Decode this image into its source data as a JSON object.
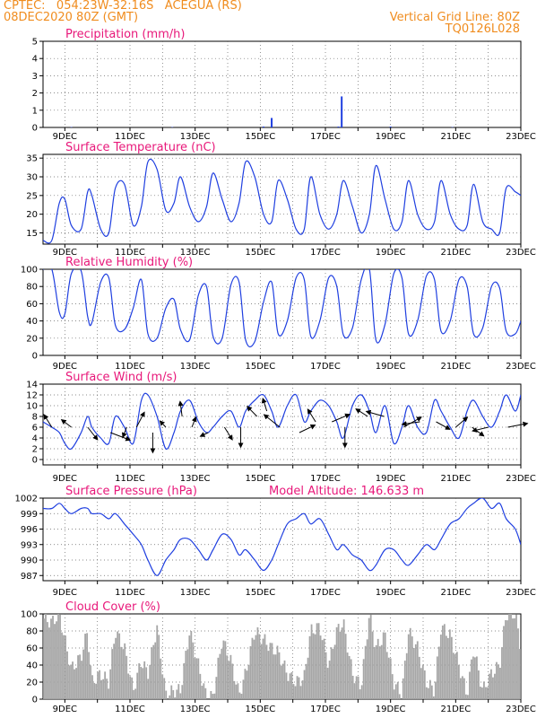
{
  "header": {
    "line1": "CPTEC:   054:23W-32:16S   ACEGUA (RS)",
    "line2": "08DEC2020 80Z (GMT)",
    "grid_note": "Vertical Grid Line: 80Z",
    "run_code": "TQ0126L028"
  },
  "colors": {
    "header": "#f08c1e",
    "title": "#e8187a",
    "series": "#1f3fe0",
    "cloud": "#a6a6a6",
    "wind_arrow": "#000000"
  },
  "chart_data": [
    {
      "type": "bar",
      "title": "Precipitation (mm/h)",
      "xlim": [
        8.33,
        23.0
      ],
      "ylim": [
        0,
        5
      ],
      "yticks": [
        0,
        1,
        2,
        3,
        4,
        5
      ],
      "xtick_labels": [
        "9DEC",
        "11DEC",
        "13DEC",
        "15DEC",
        "17DEC",
        "19DEC",
        "21DEC",
        "23DEC"
      ],
      "grid": true,
      "x": [
        9.2,
        12.3,
        15.1,
        15.35,
        17.4,
        17.5,
        19.0,
        20.9
      ],
      "values": [
        0.02,
        0.02,
        0.05,
        0.55,
        0.05,
        1.8,
        0.05,
        0.02
      ]
    },
    {
      "type": "line",
      "title": "Surface Temperature (nC)",
      "xlim": [
        8.33,
        23.0
      ],
      "ylim": [
        12,
        36
      ],
      "yticks": [
        15,
        20,
        25,
        30,
        35
      ],
      "xtick_labels": [
        "9DEC",
        "11DEC",
        "13DEC",
        "15DEC",
        "17DEC",
        "19DEC",
        "21DEC",
        "23DEC"
      ],
      "grid": true,
      "x": [
        8.33,
        8.6,
        8.83,
        9.0,
        9.2,
        9.5,
        9.7,
        9.83,
        10.1,
        10.35,
        10.55,
        10.83,
        11.1,
        11.35,
        11.55,
        11.83,
        12.1,
        12.35,
        12.55,
        12.83,
        13.1,
        13.35,
        13.55,
        13.83,
        14.1,
        14.35,
        14.55,
        14.83,
        15.1,
        15.35,
        15.55,
        15.83,
        16.1,
        16.35,
        16.55,
        16.83,
        17.1,
        17.35,
        17.55,
        17.83,
        18.1,
        18.35,
        18.55,
        18.83,
        19.1,
        19.35,
        19.55,
        19.83,
        20.1,
        20.35,
        20.55,
        20.83,
        21.1,
        21.35,
        21.55,
        21.83,
        22.1,
        22.35,
        22.55,
        22.83,
        23.0
      ],
      "values": [
        13,
        13,
        23,
        24,
        17,
        16,
        26,
        25,
        16,
        15,
        27,
        28,
        17,
        22,
        34,
        32,
        21,
        23,
        30,
        22,
        18,
        22,
        31,
        24,
        18,
        23,
        34,
        30,
        20,
        18,
        29,
        24,
        16,
        16,
        30,
        20,
        16,
        20,
        29,
        22,
        15,
        20,
        33,
        24,
        16,
        18,
        29,
        20,
        16,
        18,
        29,
        20,
        16,
        17,
        28,
        18,
        16,
        15,
        27,
        26,
        25
      ]
    },
    {
      "type": "line",
      "title": "Relative Humidity (%)",
      "xlim": [
        8.33,
        23.0
      ],
      "ylim": [
        0,
        100
      ],
      "yticks": [
        0,
        20,
        40,
        60,
        80,
        100
      ],
      "xtick_labels": [
        "9DEC",
        "11DEC",
        "13DEC",
        "15DEC",
        "17DEC",
        "19DEC",
        "21DEC",
        "23DEC"
      ],
      "grid": true,
      "x": [
        8.33,
        8.6,
        8.83,
        9.0,
        9.2,
        9.5,
        9.7,
        9.83,
        10.1,
        10.35,
        10.55,
        10.83,
        11.1,
        11.35,
        11.55,
        11.83,
        12.1,
        12.35,
        12.55,
        12.83,
        13.1,
        13.35,
        13.55,
        13.83,
        14.1,
        14.35,
        14.55,
        14.83,
        15.1,
        15.35,
        15.55,
        15.83,
        16.1,
        16.35,
        16.55,
        16.83,
        17.1,
        17.35,
        17.55,
        17.83,
        18.1,
        18.35,
        18.55,
        18.83,
        19.1,
        19.35,
        19.55,
        19.83,
        20.1,
        20.35,
        20.55,
        20.83,
        21.1,
        21.35,
        21.55,
        21.83,
        22.1,
        22.35,
        22.55,
        22.83,
        23.0
      ],
      "values": [
        100,
        100,
        50,
        48,
        95,
        98,
        45,
        38,
        85,
        90,
        35,
        30,
        55,
        88,
        25,
        20,
        55,
        65,
        30,
        18,
        70,
        80,
        22,
        20,
        82,
        85,
        18,
        16,
        62,
        85,
        25,
        40,
        90,
        88,
        22,
        40,
        90,
        80,
        24,
        32,
        88,
        100,
        18,
        36,
        95,
        90,
        25,
        40,
        92,
        88,
        28,
        40,
        88,
        80,
        25,
        32,
        80,
        78,
        28,
        25,
        40
      ]
    },
    {
      "type": "line",
      "title": "Surface Wind (m/s)",
      "xlim": [
        8.33,
        23.0
      ],
      "ylim": [
        -1,
        14
      ],
      "yticks": [
        0,
        2,
        4,
        6,
        8,
        10,
        12,
        14
      ],
      "xtick_labels": [
        "9DEC",
        "11DEC",
        "13DEC",
        "15DEC",
        "17DEC",
        "19DEC",
        "21DEC",
        "23DEC"
      ],
      "grid": true,
      "x": [
        8.33,
        8.6,
        8.83,
        9.0,
        9.2,
        9.5,
        9.7,
        9.83,
        10.1,
        10.35,
        10.55,
        10.83,
        11.1,
        11.35,
        11.55,
        11.83,
        12.1,
        12.35,
        12.55,
        12.83,
        13.1,
        13.35,
        13.55,
        13.83,
        14.1,
        14.35,
        14.55,
        14.83,
        15.1,
        15.35,
        15.55,
        15.83,
        16.1,
        16.35,
        16.55,
        16.83,
        17.1,
        17.35,
        17.55,
        17.83,
        18.1,
        18.35,
        18.55,
        18.83,
        19.1,
        19.35,
        19.55,
        19.83,
        20.1,
        20.35,
        20.55,
        20.83,
        21.1,
        21.35,
        21.55,
        21.83,
        22.1,
        22.35,
        22.55,
        22.83,
        23.0
      ],
      "values": [
        7,
        6,
        5,
        3,
        2,
        5,
        8,
        6,
        4,
        3,
        8,
        6,
        3,
        11,
        12,
        8,
        2,
        5,
        9,
        11,
        7,
        5,
        6,
        8,
        9,
        6,
        9,
        11,
        12,
        9,
        6,
        10,
        12,
        7,
        9,
        11,
        10,
        7,
        4,
        10,
        12,
        9,
        5,
        10,
        3,
        6,
        10,
        6,
        5,
        11,
        9,
        6,
        4,
        9,
        11,
        8,
        6,
        9,
        12,
        9,
        12
      ]
    },
    {
      "type": "line",
      "title": "Surface Pressure (hPa)",
      "subtitle": "Model Altitude: 146.633 m",
      "xlim": [
        8.33,
        23.0
      ],
      "ylim": [
        986,
        1002
      ],
      "yticks": [
        987,
        990,
        993,
        996,
        999,
        1002
      ],
      "xtick_labels": [
        "9DEC",
        "11DEC",
        "13DEC",
        "15DEC",
        "17DEC",
        "19DEC",
        "21DEC",
        "23DEC"
      ],
      "grid": true,
      "x": [
        8.33,
        8.6,
        8.83,
        9.0,
        9.2,
        9.5,
        9.7,
        9.83,
        10.1,
        10.35,
        10.55,
        10.83,
        11.1,
        11.35,
        11.55,
        11.83,
        12.1,
        12.35,
        12.55,
        12.83,
        13.1,
        13.35,
        13.55,
        13.83,
        14.1,
        14.35,
        14.55,
        14.83,
        15.1,
        15.35,
        15.55,
        15.83,
        16.1,
        16.35,
        16.55,
        16.83,
        17.1,
        17.35,
        17.55,
        17.83,
        18.1,
        18.35,
        18.55,
        18.83,
        19.1,
        19.35,
        19.55,
        19.83,
        20.1,
        20.35,
        20.55,
        20.83,
        21.1,
        21.35,
        21.55,
        21.83,
        22.1,
        22.35,
        22.55,
        22.83,
        23.0
      ],
      "values": [
        1000,
        1000,
        1001,
        1000,
        999,
        1000,
        1000,
        999,
        999,
        998,
        999,
        997,
        995,
        993,
        990,
        987,
        990,
        992,
        994,
        994,
        992,
        990,
        992,
        995,
        994,
        991,
        992,
        990,
        988,
        990,
        993,
        997,
        998,
        999,
        997,
        998,
        995,
        992,
        993,
        991,
        990,
        988,
        989,
        992,
        992,
        990,
        989,
        991,
        993,
        992,
        994,
        997,
        998,
        1000,
        1001,
        1002,
        1000,
        1001,
        998,
        996,
        993
      ]
    },
    {
      "type": "bar",
      "title": "Cloud Cover (%)",
      "xlim": [
        8.33,
        23.0
      ],
      "ylim": [
        0,
        100
      ],
      "yticks": [
        0,
        20,
        40,
        60,
        80,
        100
      ],
      "xtick_labels": [
        "9DEC",
        "11DEC",
        "13DEC",
        "15DEC",
        "17DEC",
        "19DEC",
        "21DEC",
        "23DEC"
      ],
      "grid": true,
      "x": [
        8.33,
        8.6,
        8.83,
        9.0,
        9.2,
        9.5,
        9.7,
        9.83,
        10.1,
        10.35,
        10.55,
        10.83,
        11.1,
        11.35,
        11.55,
        11.83,
        12.1,
        12.35,
        12.55,
        12.83,
        13.1,
        13.35,
        13.55,
        13.83,
        14.1,
        14.35,
        14.55,
        14.83,
        15.1,
        15.35,
        15.55,
        15.83,
        16.1,
        16.35,
        16.55,
        16.83,
        17.1,
        17.35,
        17.55,
        17.83,
        18.1,
        18.35,
        18.55,
        18.83,
        19.1,
        19.35,
        19.55,
        19.83,
        20.1,
        20.35,
        20.55,
        20.83,
        21.1,
        21.35,
        21.55,
        21.83,
        22.1,
        22.35,
        22.55,
        22.83,
        23.0
      ],
      "values": [
        95,
        90,
        100,
        70,
        35,
        50,
        80,
        20,
        30,
        20,
        80,
        60,
        10,
        45,
        30,
        85,
        5,
        10,
        10,
        80,
        40,
        2,
        3,
        70,
        45,
        5,
        30,
        80,
        70,
        60,
        55,
        30,
        20,
        25,
        80,
        85,
        40,
        80,
        90,
        30,
        15,
        100,
        60,
        75,
        20,
        5,
        80,
        60,
        20,
        10,
        85,
        75,
        40,
        5,
        60,
        10,
        30,
        40,
        100,
        100,
        60
      ]
    }
  ]
}
